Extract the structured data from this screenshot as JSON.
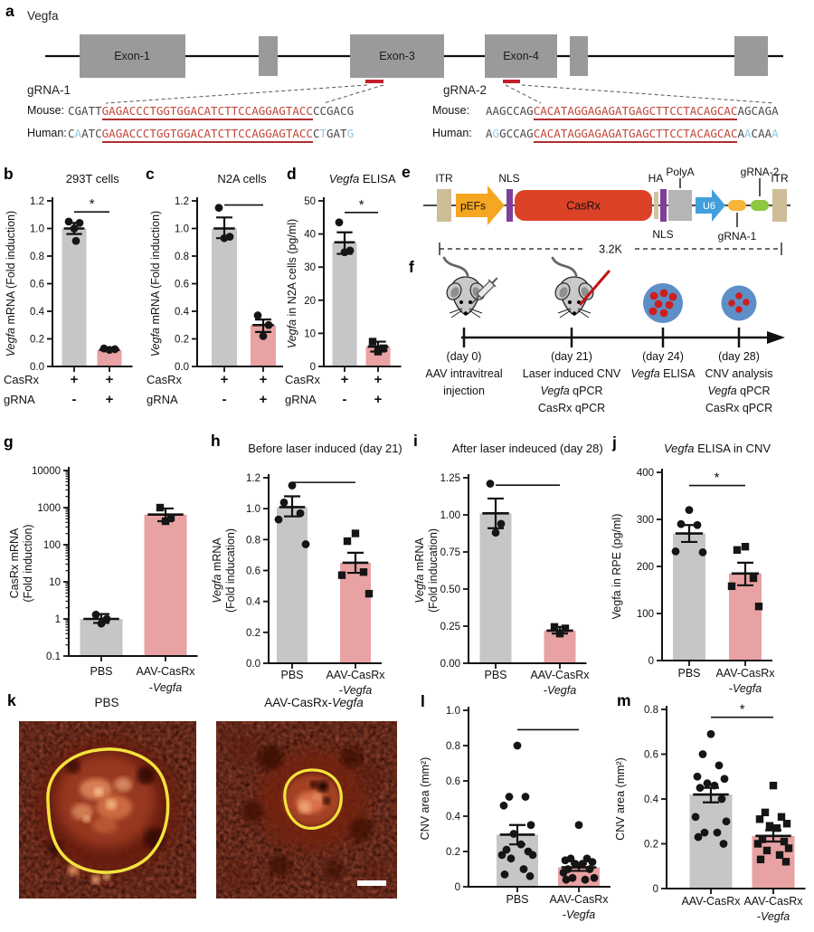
{
  "figure": {
    "name": "CasRx Vegfa knockdown CNV figure"
  },
  "colors": {
    "bar_gray": "#c6c6c6",
    "bar_pink": "#e8a2a3",
    "point": "#151515",
    "axis": "#111111",
    "seq_normal": "#4a4a4a",
    "seq_target": "#c0463a",
    "seq_mismatch": "#8fc9e8",
    "underline_red": "#ae2f2f",
    "exon_fill": "#9a9a9a",
    "red_mark": "#c0202a",
    "itr": "#cdbd97",
    "pefs": "#f5a623",
    "nls": "#7f3f98",
    "casrx": "#dc4226",
    "ha": "#cfc3a4",
    "polya": "#b5b5b5",
    "u6": "#41a0dc",
    "grna1_pill": "#f5b53a",
    "grna2_pill": "#8dc63f",
    "eye_fill": "#5d8fc7",
    "cnv_dot": "#cf1d1d",
    "laser": "#c41111",
    "outline_yellow": "#f4e33c"
  },
  "panels": {
    "a": {
      "label": "a",
      "gene": "Vegfa",
      "exon_labels": [
        "Exon-1",
        "Exon-3",
        "Exon-4"
      ],
      "grna1": {
        "name": "gRNA-1",
        "rows": [
          {
            "species": "Mouse:",
            "segs": [
              [
                "CGATT",
                0
              ],
              [
                "GAGACCCTGGTGGACATCTTCCAGGAGTACC",
                2
              ],
              [
                "CCGACG",
                0
              ]
            ]
          },
          {
            "species": "Human:",
            "segs": [
              [
                "C",
                0
              ],
              [
                "A",
                1
              ],
              [
                "ATC",
                0
              ],
              [
                "GAGACCCTGGTGGACATCTTCCAGGAGTACC",
                2
              ],
              [
                "C",
                0
              ],
              [
                "T",
                1
              ],
              [
                "GAT",
                0
              ],
              [
                "G",
                1
              ]
            ]
          }
        ]
      },
      "grna2": {
        "name": "gRNA-2",
        "rows": [
          {
            "species": "Mouse:",
            "segs": [
              [
                "AAGCCAG",
                0
              ],
              [
                "CACATAGGAGAGATGAGCTTCCTACAGCAC",
                2
              ],
              [
                "AGCAGA",
                0
              ]
            ]
          },
          {
            "species": "Human:",
            "segs": [
              [
                "A",
                0
              ],
              [
                "G",
                1
              ],
              [
                "GCCAG",
                0
              ],
              [
                "CACATAGGAGAGATGAGCTTCCTACAGCAC",
                2
              ],
              [
                "A",
                0
              ],
              [
                "A",
                1
              ],
              [
                "CAA",
                0
              ],
              [
                "A",
                1
              ]
            ]
          }
        ]
      }
    },
    "e": {
      "label": "e",
      "itr1": "ITR",
      "pefs": "pEFs",
      "nls1": "NLS",
      "casrx": "CasRx",
      "ha": "HA",
      "nls2": "NLS",
      "polya": "PolyA",
      "u6": "U6",
      "grna1": "gRNA-1",
      "grna2": "gRNA-2",
      "itr2": "ITR",
      "size": "3.2K"
    },
    "f": {
      "label": "f",
      "events": [
        {
          "day": "(day 0)",
          "lines": [
            "AAV intravitreal",
            "injection"
          ]
        },
        {
          "day": "(day 21)",
          "lines": [
            "Laser induced CNV",
            "*Vegfa* qPCR",
            "CasRx qPCR"
          ]
        },
        {
          "day": "(day 24)",
          "lines": [
            "*Vegfa* ELISA"
          ]
        },
        {
          "day": "(day 28)",
          "lines": [
            "CNV analysis",
            "*Vegfa* qPCR",
            "CasRx qPCR"
          ]
        }
      ]
    },
    "k": {
      "label": "k",
      "titles": [
        "PBS",
        "AAV-CasRx-*Vegfa*"
      ]
    },
    "labels": {
      "b": "b",
      "c": "c",
      "d": "d",
      "g": "g",
      "h": "h",
      "i": "i",
      "j": "j",
      "l": "l",
      "m": "m"
    }
  },
  "chart_data": [
    {
      "id": "b",
      "type": "bar",
      "title": "293T cells",
      "ylabel": "*Vegfa* mRNA (Fold induction)",
      "ylim": [
        0,
        1.2
      ],
      "yticks": [
        0,
        0.2,
        0.4,
        0.6,
        0.8,
        1.0,
        1.2
      ],
      "ytick_labels": [
        "0.0",
        "0.2",
        "0.4",
        "0.6",
        "0.8",
        "1.0",
        "1.2"
      ],
      "sig": "***",
      "sig_y": 1.12,
      "xmatrix": {
        "rows": [
          "CasRx",
          "gRNA"
        ],
        "values": [
          [
            "+",
            "-"
          ],
          [
            "+",
            "+"
          ]
        ]
      },
      "bars": [
        {
          "value": 1.0,
          "color": "gray",
          "err": [
            0.96,
            1.04
          ],
          "marker": "circle",
          "points": [
            1.05,
            1.04,
            1.0,
            0.91
          ]
        },
        {
          "value": 0.12,
          "color": "pink",
          "err": [
            0.115,
            0.13
          ],
          "marker": "circle",
          "points": [
            0.13,
            0.125,
            0.12
          ]
        }
      ]
    },
    {
      "id": "c",
      "type": "bar",
      "title": "N2A cells",
      "ylabel": "*Vegfa* mRNA (Fold induction)",
      "ylim": [
        0,
        1.2
      ],
      "yticks": [
        0,
        0.2,
        0.4,
        0.6,
        0.8,
        1.0,
        1.2
      ],
      "ytick_labels": [
        "0.0",
        "0.2",
        "0.4",
        "0.6",
        "0.8",
        "1.0",
        "1.2"
      ],
      "sig": "**",
      "sig_y": 1.17,
      "xmatrix": {
        "rows": [
          "CasRx",
          "gRNA"
        ],
        "values": [
          [
            "+",
            "-"
          ],
          [
            "+",
            "+"
          ]
        ]
      },
      "bars": [
        {
          "value": 1.0,
          "color": "gray",
          "err": [
            0.93,
            1.08
          ],
          "marker": "circle",
          "points": [
            1.15,
            0.94,
            0.93
          ]
        },
        {
          "value": 0.3,
          "color": "pink",
          "err": [
            0.25,
            0.34
          ],
          "marker": "circle",
          "points": [
            0.37,
            0.3,
            0.22
          ]
        }
      ]
    },
    {
      "id": "d",
      "type": "bar",
      "title": "*Vegfa* ELISA",
      "ylabel": "*Vegfa* in N2A cells (pg/ml)",
      "ylim": [
        0,
        50
      ],
      "yticks": [
        0,
        10,
        20,
        30,
        40,
        50
      ],
      "ytick_labels": [
        "0",
        "10",
        "20",
        "30",
        "40",
        "50"
      ],
      "sig": "***",
      "sig_y": 46.5,
      "xmatrix": {
        "rows": [
          "CasRx",
          "gRNA"
        ],
        "values": [
          [
            "+",
            "-"
          ],
          [
            "+",
            "+"
          ]
        ]
      },
      "bars": [
        {
          "value": 37.5,
          "color": "gray",
          "err": [
            34,
            40.5
          ],
          "marker": "circle",
          "points": [
            43.5,
            35,
            34.5
          ]
        },
        {
          "value": 6,
          "color": "pink",
          "err": [
            4.5,
            7.5
          ],
          "marker": "square",
          "points": [
            7.5,
            5.5,
            4.5
          ]
        }
      ]
    },
    {
      "id": "g",
      "type": "bar",
      "title": "",
      "ylabel": "CasRx mRNA\n(Fold induction)",
      "yscale": "log",
      "ylim": [
        0.1,
        10000
      ],
      "yticks": [
        0.1,
        1,
        10,
        100,
        1000,
        10000
      ],
      "ytick_labels": [
        "0.1",
        "1",
        "10",
        "100",
        "1000",
        "10000"
      ],
      "xlabels": [
        "PBS",
        "AAV-CasRx\n-*Vegfa*"
      ],
      "bars": [
        {
          "value": 1.0,
          "color": "gray",
          "err": [
            0.78,
            1.35
          ],
          "marker": "circle",
          "points": [
            1.3,
            1.0,
            0.75
          ]
        },
        {
          "value": 650,
          "color": "pink",
          "err": [
            430,
            950
          ],
          "marker": "square",
          "points": [
            1000,
            550,
            430
          ]
        }
      ]
    },
    {
      "id": "h",
      "type": "bar",
      "title": "Before laser induced (day 21)",
      "ylabel": "*Vegfa* mRNA\n(Fold inducation)",
      "ylim": [
        0,
        1.2
      ],
      "yticks": [
        0,
        0.2,
        0.4,
        0.6,
        0.8,
        1.0,
        1.2
      ],
      "ytick_labels": [
        "0.0",
        "0.2",
        "0.4",
        "0.6",
        "0.8",
        "1.0",
        "1.2"
      ],
      "sig": "**",
      "sig_y": 1.17,
      "xlabels": [
        "PBS",
        "AAV-CasRx\n-*Vegfa*"
      ],
      "bars": [
        {
          "value": 1.01,
          "color": "gray",
          "err": [
            0.95,
            1.08
          ],
          "marker": "circle",
          "points": [
            1.15,
            1.04,
            0.97,
            0.93,
            0.77
          ]
        },
        {
          "value": 0.65,
          "color": "pink",
          "err": [
            0.585,
            0.715
          ],
          "marker": "square",
          "points": [
            0.84,
            0.79,
            0.59,
            0.57,
            0.45
          ]
        }
      ]
    },
    {
      "id": "i",
      "type": "bar",
      "title": "After laser indeuced (day 28)",
      "ylabel": "*Vegfa* mRNA\n(Fold inducation)",
      "ylim": [
        0,
        1.25
      ],
      "yticks": [
        0,
        0.25,
        0.5,
        0.75,
        1.0,
        1.25
      ],
      "ytick_labels": [
        "0.00",
        "0.25",
        "0.50",
        "0.75",
        "1.00",
        "1.25"
      ],
      "sig": "**",
      "sig_y": 1.2,
      "xlabels": [
        "PBS",
        "AAV-CasRx\n-*Vegfa*"
      ],
      "bars": [
        {
          "value": 1.01,
          "color": "gray",
          "err": [
            0.91,
            1.11
          ],
          "marker": "circle",
          "points": [
            1.21,
            0.94,
            0.88
          ]
        },
        {
          "value": 0.22,
          "color": "pink",
          "err": [
            0.2,
            0.245
          ],
          "marker": "square",
          "points": [
            0.245,
            0.235,
            0.2
          ]
        }
      ]
    },
    {
      "id": "j",
      "type": "bar",
      "title": "*Vegfa* ELISA in CNV",
      "ylabel": "Vegfa in RPE (pg/ml)",
      "ylim": [
        0,
        400
      ],
      "yticks": [
        0,
        100,
        200,
        300,
        400
      ],
      "ytick_labels": [
        "0",
        "100",
        "200",
        "300",
        "400"
      ],
      "sig": "*",
      "sig_y": 372,
      "xlabels": [
        "PBS",
        "AAV-CasRx\n-*Vegfa*"
      ],
      "bars": [
        {
          "value": 270,
          "color": "gray",
          "err": [
            252,
            288
          ],
          "marker": "circle",
          "points": [
            320,
            290,
            288,
            232,
            230
          ]
        },
        {
          "value": 185,
          "color": "pink",
          "err": [
            160,
            208
          ],
          "marker": "square",
          "points": [
            242,
            235,
            175,
            158,
            115
          ]
        }
      ]
    },
    {
      "id": "l",
      "type": "bar",
      "title": "",
      "ylabel": "CNV area (mm²)",
      "ylim": [
        0,
        1.0
      ],
      "yticks": [
        0,
        0.2,
        0.4,
        0.6,
        0.8,
        1.0
      ],
      "ytick_labels": [
        "0",
        "0.2",
        "0.4",
        "0.6",
        "0.8",
        "1.0"
      ],
      "sig": "**",
      "sig_y": 0.89,
      "xlabels": [
        "PBS",
        "AAV-CasRx\n-*Vegfa*"
      ],
      "bars": [
        {
          "value": 0.295,
          "color": "gray",
          "err": [
            0.24,
            0.35
          ],
          "marker": "circle",
          "points": [
            0.8,
            0.51,
            0.51,
            0.46,
            0.35,
            0.3,
            0.24,
            0.21,
            0.2,
            0.18,
            0.18,
            0.16,
            0.1,
            0.07,
            0.06
          ]
        },
        {
          "value": 0.11,
          "color": "pink",
          "err": [
            0.09,
            0.13
          ],
          "marker": "circle",
          "points": [
            0.35,
            0.16,
            0.16,
            0.15,
            0.14,
            0.13,
            0.13,
            0.1,
            0.1,
            0.08,
            0.05,
            0.05,
            0.04,
            0.04
          ]
        }
      ]
    },
    {
      "id": "m",
      "type": "bar",
      "title": "",
      "ylabel": "CNV area (mm²)",
      "ylim": [
        0,
        0.8
      ],
      "yticks": [
        0,
        0.2,
        0.4,
        0.6,
        0.8
      ],
      "ytick_labels": [
        "0",
        "0.2",
        "0.4",
        "0.6",
        "0.8"
      ],
      "sig": "***",
      "sig_y": 0.765,
      "xlabels": [
        "AAV-CasRx",
        "AAV-CasRx\n-*Vegfa*"
      ],
      "bars": [
        {
          "value": 0.42,
          "color": "gray",
          "err": [
            0.385,
            0.45
          ],
          "marker": "circle",
          "points": [
            0.69,
            0.6,
            0.55,
            0.5,
            0.49,
            0.47,
            0.46,
            0.45,
            0.4,
            0.32,
            0.3,
            0.25,
            0.25,
            0.23,
            0.2
          ]
        },
        {
          "value": 0.235,
          "color": "pink",
          "err": [
            0.21,
            0.26
          ],
          "marker": "square",
          "points": [
            0.46,
            0.34,
            0.32,
            0.31,
            0.29,
            0.28,
            0.27,
            0.22,
            0.21,
            0.2,
            0.18,
            0.17,
            0.15,
            0.13,
            0.12
          ]
        }
      ]
    }
  ]
}
